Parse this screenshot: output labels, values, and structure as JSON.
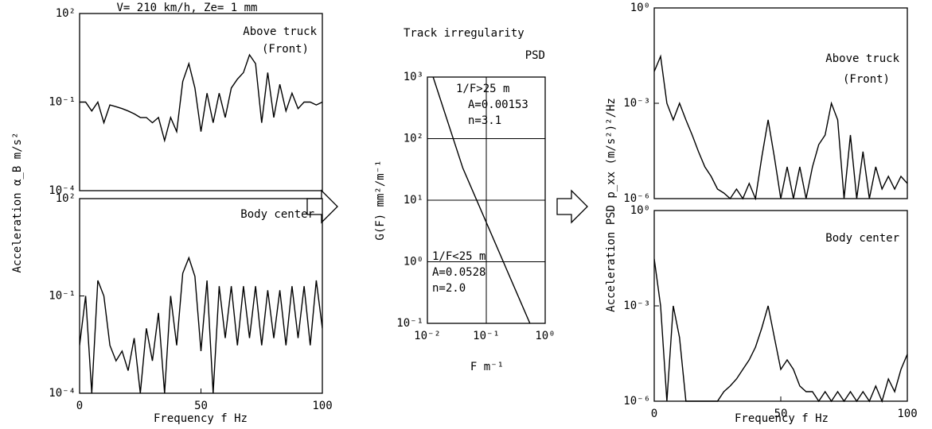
{
  "chart_data": [
    {
      "type": "line",
      "title": "V= 210 km/h,  Ze= 1 mm",
      "ylabel": "Acceleration  α_B  m/s²",
      "annotations": [
        "Above truck",
        "(Front)"
      ],
      "log_y": true,
      "xlim": [
        0,
        100
      ],
      "ylim": [
        0.0001,
        100
      ],
      "yticks": [
        {
          "value": 100,
          "label": "10²"
        },
        {
          "value": 0.1,
          "label": "10⁻¹"
        },
        {
          "value": 0.0001,
          "label": "10⁻⁴"
        }
      ],
      "x": [
        0,
        2.5,
        5,
        7.5,
        10,
        12.5,
        15,
        17.5,
        20,
        22.5,
        25,
        27.5,
        30,
        32.5,
        35,
        37.5,
        40,
        42.5,
        45,
        47.5,
        50,
        52.5,
        55,
        57.5,
        60,
        62.5,
        65,
        67.5,
        70,
        72.5,
        75,
        77.5,
        80,
        82.5,
        85,
        87.5,
        90,
        92.5,
        95,
        97.5,
        100
      ],
      "color": "#000000",
      "values": [
        0.1,
        0.1,
        0.05,
        0.1,
        0.02,
        0.08,
        0.07,
        0.06,
        0.05,
        0.04,
        0.03,
        0.03,
        0.02,
        0.03,
        0.005,
        0.03,
        0.01,
        0.5,
        2,
        0.3,
        0.01,
        0.2,
        0.02,
        0.2,
        0.03,
        0.3,
        0.6,
        1,
        4,
        2,
        0.02,
        1,
        0.03,
        0.4,
        0.05,
        0.2,
        0.06,
        0.1,
        0.1,
        0.08,
        0.1
      ]
    },
    {
      "type": "line",
      "xlabel": "Frequency  f  Hz",
      "annotations": [
        "Body center"
      ],
      "log_y": true,
      "xlim": [
        0,
        100
      ],
      "xticks": [
        0,
        50,
        100
      ],
      "ylim": [
        0.0001,
        100
      ],
      "yticks": [
        {
          "value": 100,
          "label": "10²"
        },
        {
          "value": 0.1,
          "label": "10⁻¹"
        },
        {
          "value": 0.0001,
          "label": "10⁻⁴"
        }
      ],
      "x": [
        0,
        2.5,
        5,
        7.5,
        10,
        12.5,
        15,
        17.5,
        20,
        22.5,
        25,
        27.5,
        30,
        32.5,
        35,
        37.5,
        40,
        42.5,
        45,
        47.5,
        50,
        52.5,
        55,
        57.5,
        60,
        62.5,
        65,
        67.5,
        70,
        72.5,
        75,
        77.5,
        80,
        82.5,
        85,
        87.5,
        90,
        92.5,
        95,
        97.5,
        100
      ],
      "color": "#000000",
      "values": [
        0.003,
        0.1,
        0.0001,
        0.3,
        0.1,
        0.003,
        0.001,
        0.002,
        0.0005,
        0.005,
        0.0001,
        0.01,
        0.001,
        0.03,
        0.0001,
        0.1,
        0.003,
        0.5,
        1.5,
        0.4,
        0.002,
        0.3,
        0.0001,
        0.2,
        0.005,
        0.2,
        0.003,
        0.2,
        0.005,
        0.2,
        0.003,
        0.15,
        0.005,
        0.15,
        0.003,
        0.2,
        0.005,
        0.2,
        0.003,
        0.3,
        0.01
      ]
    },
    {
      "type": "line",
      "title": "Track irregularity",
      "subtitle": "PSD",
      "xlabel": "F   m⁻¹",
      "ylabel": "G(F)   mm²/m⁻¹",
      "annotations": [
        "1/F>25 m",
        "A=0.00153",
        "n=3.1",
        "1/F<25 m",
        "A=0.0528",
        "n=2.0"
      ],
      "log_x": true,
      "log_y": true,
      "grid": true,
      "xlim": [
        0.01,
        1
      ],
      "xticks": [
        {
          "value": 0.01,
          "label": "10⁻²"
        },
        {
          "value": 0.1,
          "label": "10⁻¹"
        },
        {
          "value": 1,
          "label": "10⁰"
        }
      ],
      "ylim": [
        0.1,
        1000
      ],
      "yticks": [
        {
          "value": 1000,
          "label": "10³"
        },
        {
          "value": 100,
          "label": "10²"
        },
        {
          "value": 10,
          "label": "10¹"
        },
        {
          "value": 1,
          "label": "10⁰"
        },
        {
          "value": 0.1,
          "label": "10⁻¹"
        }
      ],
      "x": [
        0.0125,
        0.04,
        0.55
      ],
      "color": "#000000",
      "values": [
        1000,
        33,
        0.1
      ]
    },
    {
      "type": "line",
      "ylabel": "Acceleration  PSD  p_xx  (m/s²)²/Hz",
      "annotations": [
        "Above truck",
        "(Front)"
      ],
      "log_y": true,
      "xlim": [
        0,
        100
      ],
      "ylim": [
        1e-06,
        1
      ],
      "yticks": [
        {
          "value": 1,
          "label": "10⁰"
        },
        {
          "value": 0.001,
          "label": "10⁻³"
        },
        {
          "value": 1e-06,
          "label": "10⁻⁶"
        }
      ],
      "x": [
        0,
        2.5,
        5,
        7.5,
        10,
        12.5,
        15,
        17.5,
        20,
        22.5,
        25,
        27.5,
        30,
        32.5,
        35,
        37.5,
        40,
        42.5,
        45,
        47.5,
        50,
        52.5,
        55,
        57.5,
        60,
        62.5,
        65,
        67.5,
        70,
        72.5,
        75,
        77.5,
        80,
        82.5,
        85,
        87.5,
        90,
        92.5,
        95,
        97.5,
        100
      ],
      "color": "#000000",
      "values": [
        0.01,
        0.03,
        0.001,
        0.0003,
        0.001,
        0.0003,
        0.0001,
        3e-05,
        1e-05,
        5e-06,
        2e-06,
        1.5e-06,
        1e-06,
        2e-06,
        1e-06,
        3e-06,
        1e-06,
        2e-05,
        0.0003,
        2e-05,
        1e-06,
        1e-05,
        1e-06,
        1e-05,
        1e-06,
        1e-05,
        5e-05,
        0.0001,
        0.001,
        0.0003,
        1e-06,
        0.0001,
        1e-06,
        3e-05,
        1e-06,
        1e-05,
        2e-06,
        5e-06,
        2e-06,
        5e-06,
        3e-06
      ]
    },
    {
      "type": "line",
      "xlabel": "Frequency  f  Hz",
      "annotations": [
        "Body center"
      ],
      "log_y": true,
      "xlim": [
        0,
        100
      ],
      "xticks": [
        0,
        50,
        100
      ],
      "ylim": [
        1e-06,
        1
      ],
      "yticks": [
        {
          "value": 1,
          "label": "10⁰"
        },
        {
          "value": 0.001,
          "label": "10⁻³"
        },
        {
          "value": 1e-06,
          "label": "10⁻⁶"
        }
      ],
      "x": [
        0,
        2.5,
        5,
        7.5,
        10,
        12.5,
        15,
        17.5,
        20,
        22.5,
        25,
        27.5,
        30,
        32.5,
        35,
        37.5,
        40,
        42.5,
        45,
        47.5,
        50,
        52.5,
        55,
        57.5,
        60,
        62.5,
        65,
        67.5,
        70,
        72.5,
        75,
        77.5,
        80,
        82.5,
        85,
        87.5,
        90,
        92.5,
        95,
        97.5,
        100
      ],
      "color": "#000000",
      "values": [
        0.03,
        0.001,
        1e-06,
        0.001,
        0.0001,
        1e-06,
        1e-06,
        1e-06,
        1e-06,
        1e-06,
        1e-06,
        2e-06,
        3e-06,
        5e-06,
        1e-05,
        2e-05,
        5e-05,
        0.0002,
        0.001,
        0.0001,
        1e-05,
        2e-05,
        1e-05,
        3e-06,
        2e-06,
        2e-06,
        1e-06,
        2e-06,
        1e-06,
        2e-06,
        1e-06,
        2e-06,
        1e-06,
        2e-06,
        1e-06,
        3e-06,
        1e-06,
        5e-06,
        2e-06,
        1e-05,
        3e-05
      ]
    }
  ]
}
